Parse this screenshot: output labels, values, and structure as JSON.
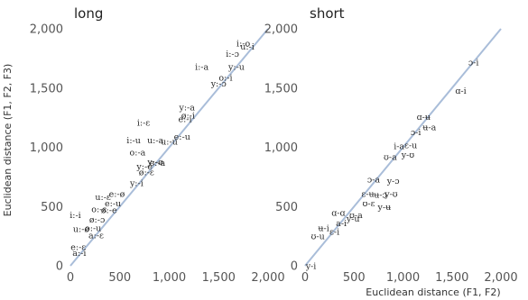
{
  "chart_data": {
    "type": "scatter",
    "ylabel": "Euclidean distance (F1, F2, F3)",
    "xlabel": "Euclidean distance (F1, F2)",
    "xlim": [
      0,
      2000
    ],
    "ylim": [
      0,
      2000
    ],
    "xticks": [
      "0",
      "500",
      "1,000",
      "1,500",
      "2,000"
    ],
    "yticks": [
      "0",
      "500",
      "1,000",
      "1,500",
      "2,000"
    ],
    "reference_line": "y = x",
    "grid": false,
    "panels": [
      {
        "title": "long",
        "points": [
          {
            "label": "i:-o",
            "x": 1750,
            "y": 1880
          },
          {
            "label": "u:-i",
            "x": 1790,
            "y": 1850
          },
          {
            "label": "i:-ɔ",
            "x": 1640,
            "y": 1790
          },
          {
            "label": "i:-a",
            "x": 1330,
            "y": 1680
          },
          {
            "label": "y:-u",
            "x": 1680,
            "y": 1680
          },
          {
            "label": "o:-i",
            "x": 1570,
            "y": 1590
          },
          {
            "label": "y:-ɔ",
            "x": 1500,
            "y": 1540
          },
          {
            "label": "y:-a",
            "x": 1180,
            "y": 1340
          },
          {
            "label": "ø:-i",
            "x": 1190,
            "y": 1270
          },
          {
            "label": "i:-ɛ",
            "x": 740,
            "y": 1210
          },
          {
            "label": "e:-i",
            "x": 1160,
            "y": 1240
          },
          {
            "label": "e:-u",
            "x": 1130,
            "y": 1090
          },
          {
            "label": "i:-u",
            "x": 640,
            "y": 1060
          },
          {
            "label": "u:-a",
            "x": 860,
            "y": 1060
          },
          {
            "label": "u:-u",
            "x": 1000,
            "y": 1050
          },
          {
            "label": "o:-a",
            "x": 680,
            "y": 960
          },
          {
            "label": "y:-ø",
            "x": 860,
            "y": 880
          },
          {
            "label": "e:-a",
            "x": 880,
            "y": 870
          },
          {
            "label": "y:-e",
            "x": 750,
            "y": 840
          },
          {
            "label": "ø:-ɛ",
            "x": 770,
            "y": 790
          },
          {
            "label": "y:-i",
            "x": 670,
            "y": 700
          },
          {
            "label": "e:-ø",
            "x": 470,
            "y": 610
          },
          {
            "label": "u:-ɛ",
            "x": 330,
            "y": 580
          },
          {
            "label": "e:-u",
            "x": 430,
            "y": 530
          },
          {
            "label": "o:-ɛ",
            "x": 290,
            "y": 480
          },
          {
            "label": "ø:-e",
            "x": 390,
            "y": 470
          },
          {
            "label": "i:-i",
            "x": 50,
            "y": 430
          },
          {
            "label": "ø:-ɔ",
            "x": 270,
            "y": 390
          },
          {
            "label": "u:-ø",
            "x": 110,
            "y": 310
          },
          {
            "label": "o:-u",
            "x": 230,
            "y": 320
          },
          {
            "label": "a:-ɛ",
            "x": 260,
            "y": 260
          },
          {
            "label": "e:-ɛ",
            "x": 80,
            "y": 160
          },
          {
            "label": "a:-i",
            "x": 90,
            "y": 110
          }
        ]
      },
      {
        "title": "short",
        "points": [
          {
            "label": "ɔ-i",
            "x": 1720,
            "y": 1720
          },
          {
            "label": "ɑ-i",
            "x": 1590,
            "y": 1480
          },
          {
            "label": "ɑ-ʉ",
            "x": 1210,
            "y": 1260
          },
          {
            "label": "ʉ-a",
            "x": 1270,
            "y": 1170
          },
          {
            "label": "ɔ-i",
            "x": 1130,
            "y": 1130
          },
          {
            "label": "i-a",
            "x": 960,
            "y": 1010
          },
          {
            "label": "ɛ-u",
            "x": 1080,
            "y": 1020
          },
          {
            "label": "ʊ-a",
            "x": 870,
            "y": 920
          },
          {
            "label": "y-ʊ",
            "x": 1050,
            "y": 940
          },
          {
            "label": "ɔ-a",
            "x": 700,
            "y": 730
          },
          {
            "label": "y-ɔ",
            "x": 900,
            "y": 720
          },
          {
            "label": "ɛ-ʉ",
            "x": 640,
            "y": 610
          },
          {
            "label": "ʉ-ɔ",
            "x": 770,
            "y": 600
          },
          {
            "label": "y-ʊ",
            "x": 880,
            "y": 610
          },
          {
            "label": "ʊ-ɛ",
            "x": 650,
            "y": 530
          },
          {
            "label": "y-ʉ",
            "x": 810,
            "y": 500
          },
          {
            "label": "ɑ-ɑ",
            "x": 340,
            "y": 450
          },
          {
            "label": "ʊ-a",
            "x": 520,
            "y": 430
          },
          {
            "label": "y-u",
            "x": 490,
            "y": 400
          },
          {
            "label": "a-i",
            "x": 370,
            "y": 360
          },
          {
            "label": "ɛ-i",
            "x": 300,
            "y": 290
          },
          {
            "label": "ʉ-i",
            "x": 190,
            "y": 320
          },
          {
            "label": "ʊ-u",
            "x": 130,
            "y": 250
          },
          {
            "label": "y-i",
            "x": 60,
            "y": 0
          }
        ]
      }
    ]
  }
}
